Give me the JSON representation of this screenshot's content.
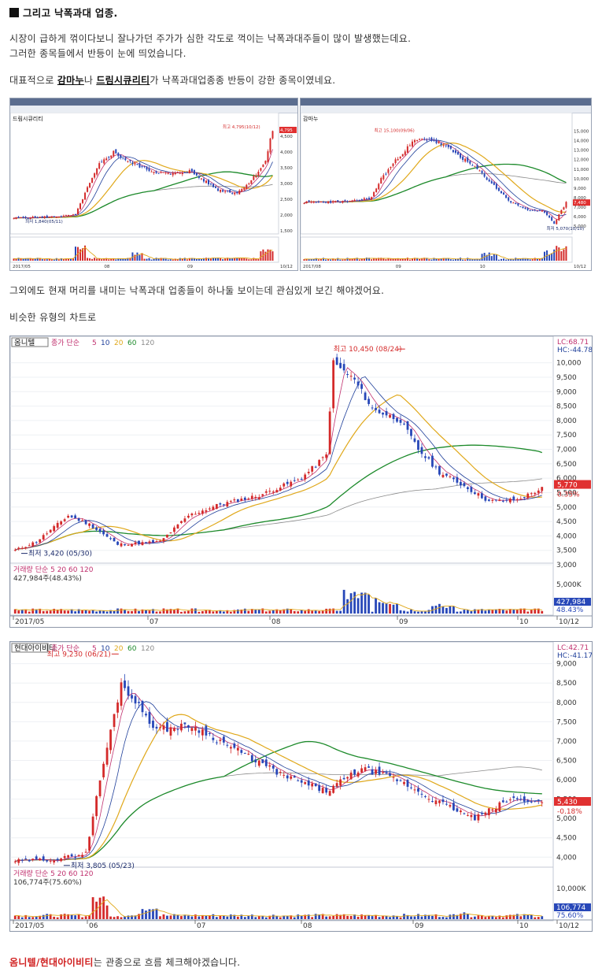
{
  "heading": "그리고 낙폭과대 업종.",
  "para1_line1": "시장이 급하게 꺾이다보니 잘나가던 주가가 심한 각도로 꺽이는 낙폭과대주들이 많이 발생했는데요.",
  "para1_line2": "그러한 종목들에서 반등이 눈에 띄었습니다.",
  "para2": {
    "prefix": "대표적으로 ",
    "stock1": "감마누",
    "middle": "나 ",
    "stock2": "드림시큐리티",
    "suffix": "가 낙폭과대업종종 반등이 강한 종목이였네요."
  },
  "para3": "그외에도 현재 머리를 내미는 낙폭과대 업종들이 하나둘 보이는데 관심있게 보긴 해야겠어요.",
  "para4": "비슷한 유형의 차트로",
  "closing": {
    "stocks": "옴니텔/현대아이비티",
    "suffix": "는 관종으로 흐름 체크해야겠습니다."
  },
  "small_charts": [
    {
      "name": "드림시큐리티",
      "high_label": "최고 4,795(10/12)",
      "low_label": "최저 1,840(05/11)",
      "price_badge": "4,795",
      "y_ticks": [
        "4,500",
        "4,000",
        "3,500",
        "3,000",
        "2,500",
        "2,000",
        "1,500"
      ],
      "dates": [
        "2017/05",
        "08",
        "09",
        "10/12"
      ]
    },
    {
      "name": "감마누",
      "high_label": "최고 15,100(09/06)",
      "low_label": "최저 5,070(10/10)",
      "price_badge": "7,480",
      "y_ticks": [
        "15,000",
        "14,000",
        "13,000",
        "12,000",
        "11,000",
        "10,000",
        "9,000",
        "8,000",
        "7,000",
        "6,000",
        "5,000"
      ],
      "dates": [
        "2017/08",
        "09",
        "10",
        "10/12"
      ]
    }
  ],
  "charts": [
    {
      "stock_name": "옴니텔",
      "legend": [
        "종가 단순",
        "5",
        "10",
        "20",
        "60",
        "120"
      ],
      "lc": "LC:68.71",
      "hc": "HC:-44.78",
      "high_label": "최고 10,450 (08/24)",
      "low_label": "최저 3,420 (05/30)",
      "price_badge": "5,770",
      "change_text": "0.35%",
      "price_ticks": [
        "10,000",
        "9,500",
        "9,000",
        "8,500",
        "8,000",
        "7,500",
        "7,000",
        "6,500",
        "6,000",
        "5,500",
        "5,000",
        "4,500",
        "4,000",
        "3,500",
        "3,000"
      ],
      "volume_title": "거래량 단순 5 20 60 120",
      "volume_value": "427,984주(48.43%)",
      "volume_tick": "5,000K",
      "volume_badge": "427,984",
      "volume_pct": "48.43%",
      "dates": [
        "2017/05",
        "07",
        "08",
        "09",
        "10",
        "10/12"
      ]
    },
    {
      "stock_name": "현대아이비티",
      "legend": [
        "종가 단순",
        "5",
        "10",
        "20",
        "60",
        "120"
      ],
      "lc": "LC:42.71",
      "hc": "HC:-41.17",
      "high_label": "최고 9,230 (06/21)",
      "low_label": "최저 3,805 (05/23)",
      "price_badge": "5,430",
      "change_text": "-0.18%",
      "price_ticks": [
        "9,000",
        "8,500",
        "8,000",
        "7,500",
        "7,000",
        "6,500",
        "6,000",
        "5,500",
        "5,000",
        "4,500",
        "4,000"
      ],
      "volume_title": "거래량 단순 5 20 60 120",
      "volume_value": "106,774주(75.60%)",
      "volume_tick": "10,000K",
      "volume_badge": "106,774",
      "volume_pct": "75.60%",
      "dates": [
        "2017/05",
        "06",
        "07",
        "08",
        "09",
        "10",
        "10/12"
      ]
    }
  ],
  "colors": {
    "up": "#d42a2a",
    "down": "#2747b8",
    "ma5": "#c0306e",
    "ma10": "#1f3f9a",
    "ma20": "#e0a81a",
    "ma60": "#1c8a2a",
    "ma120": "#8a8a8a",
    "badge": "#e03030"
  }
}
